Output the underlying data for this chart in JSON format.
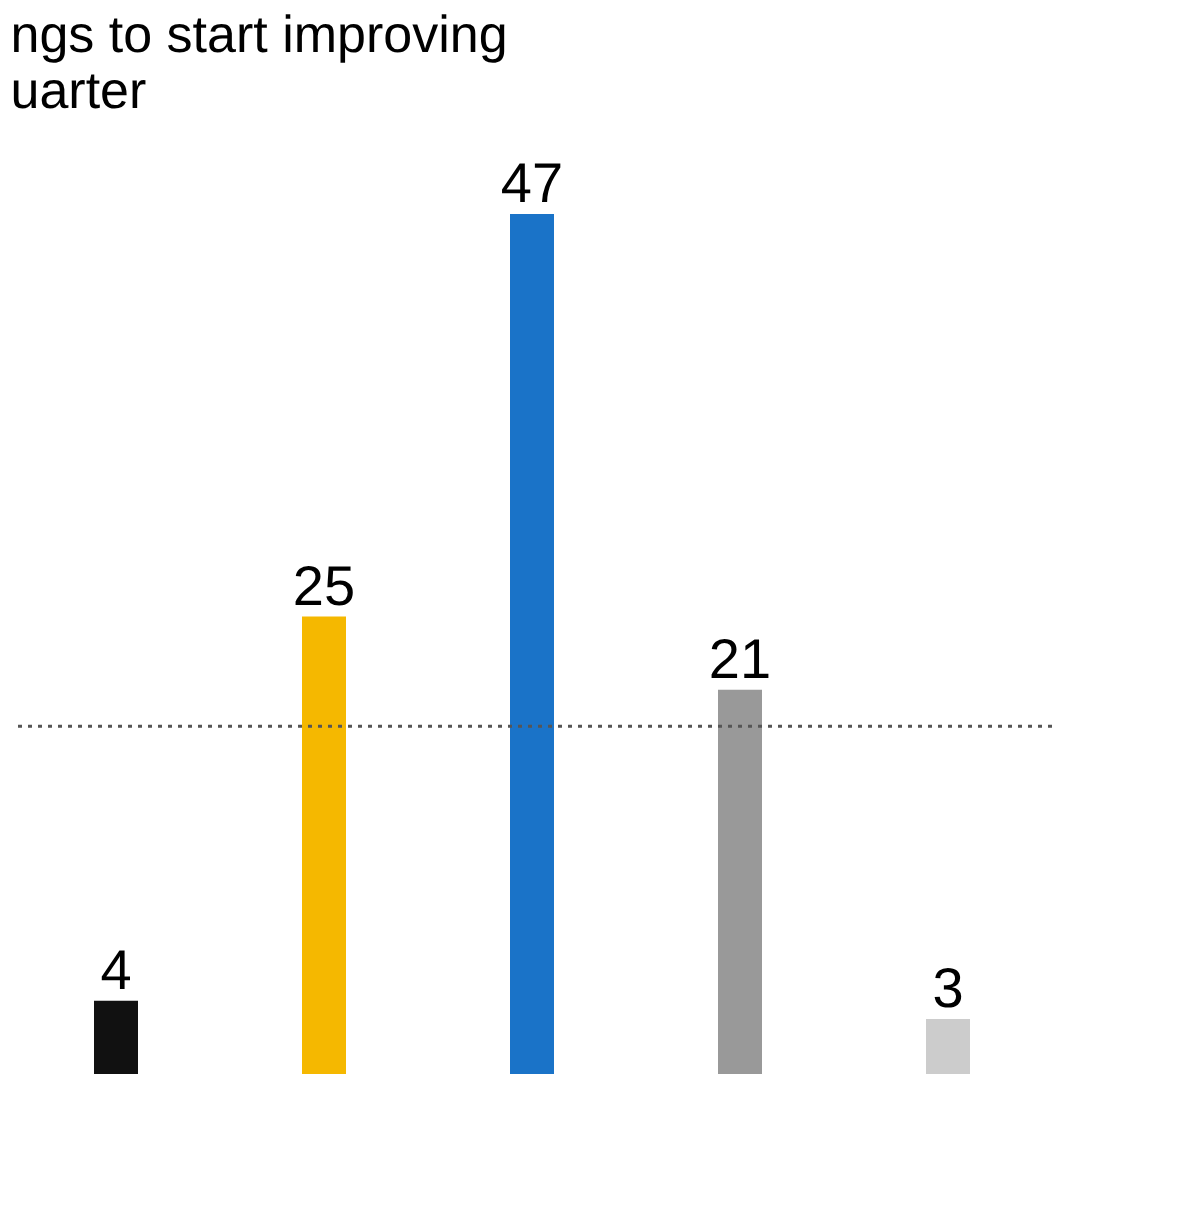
{
  "chart_data": {
    "type": "bar",
    "title": [
      "ngs to start improving",
      "uarter"
    ],
    "categories": [
      null,
      null,
      null,
      null,
      null
    ],
    "values": [
      4,
      25,
      47,
      21,
      3
    ],
    "colors": [
      "#111111",
      "#f5b800",
      "#1a73c8",
      "#999999",
      "#cccccc"
    ],
    "data_labels": true,
    "tick_labels": false,
    "ref_lines": [
      {
        "axis": "y",
        "value": 19,
        "line_style": "dotted",
        "color": "#555555"
      }
    ]
  }
}
